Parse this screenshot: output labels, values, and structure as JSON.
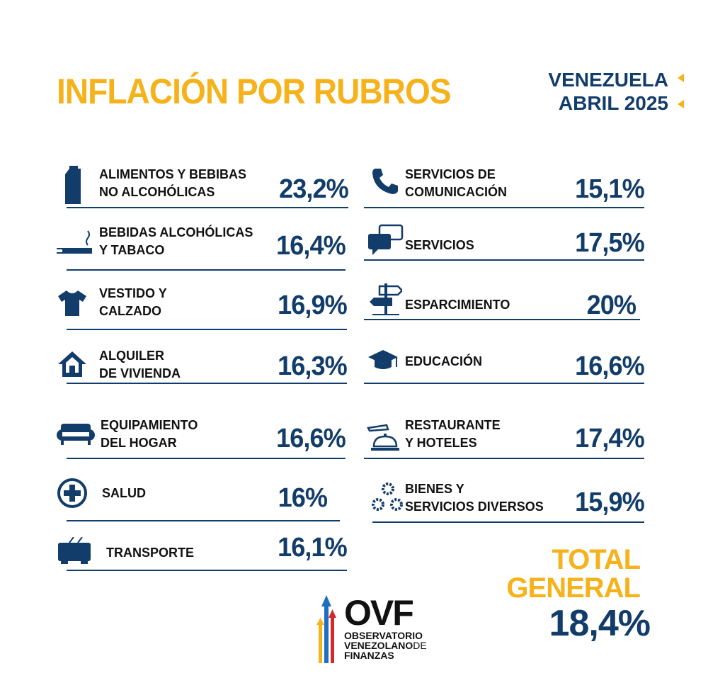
{
  "header": {
    "title": "INFLACIÓN POR  RUBROS",
    "country": "VENEZUELA",
    "period": "ABRIL 2025"
  },
  "colors": {
    "accent": "#f6b21b",
    "navy": "#123c69"
  },
  "left": [
    {
      "icon": "milk-carton-icon",
      "label": "ALIMENTOS Y BEBIBAS\nNO ALCOHÓLICAS",
      "value": "23,2%"
    },
    {
      "icon": "cigarette-icon",
      "label": "BEBIDAS ALCOHÓLICAS\nY TABACO",
      "value": "16,4%"
    },
    {
      "icon": "tshirt-icon",
      "label": "VESTIDO Y\nCALZADO",
      "value": "16,9%"
    },
    {
      "icon": "house-icon",
      "label": "ALQUILER\nDE VIVIENDA",
      "value": "16,3%"
    },
    {
      "icon": "sofa-icon",
      "label": "EQUIPAMIENTO\nDEL HOGAR",
      "value": "16,6%"
    },
    {
      "icon": "health-plus-icon",
      "label": "SALUD",
      "value": "16%"
    },
    {
      "icon": "bus-icon",
      "label": "TRANSPORTE",
      "value": "16,1%"
    }
  ],
  "right": [
    {
      "icon": "phone-icon",
      "label": "SERVICIOS DE\nCOMUNICACIÓN",
      "value": "15,1%"
    },
    {
      "icon": "chat-bubbles-icon",
      "label": "SERVICIOS",
      "value": "17,5%"
    },
    {
      "icon": "signpost-icon",
      "label": "ESPARCIMIENTO",
      "value": "20%"
    },
    {
      "icon": "graduation-cap-icon",
      "label": "EDUCACIÓN",
      "value": "16,6%"
    },
    {
      "icon": "service-bell-icon",
      "label": "RESTAURANTE\nY HOTELES",
      "value": "17,4%"
    },
    {
      "icon": "gears-icon",
      "label": "BIENES Y\nSERVICIOS DIVERSOS",
      "value": "15,9%"
    }
  ],
  "total": {
    "label_line1": "TOTAL",
    "label_line2": "GENERAL",
    "value": "18,4%"
  },
  "logo": {
    "name": "OVF",
    "line1": "OBSERVATORIO",
    "line2": "VENEZOLANO",
    "line2_suffix": "DE",
    "line3": "FINANZAS"
  }
}
